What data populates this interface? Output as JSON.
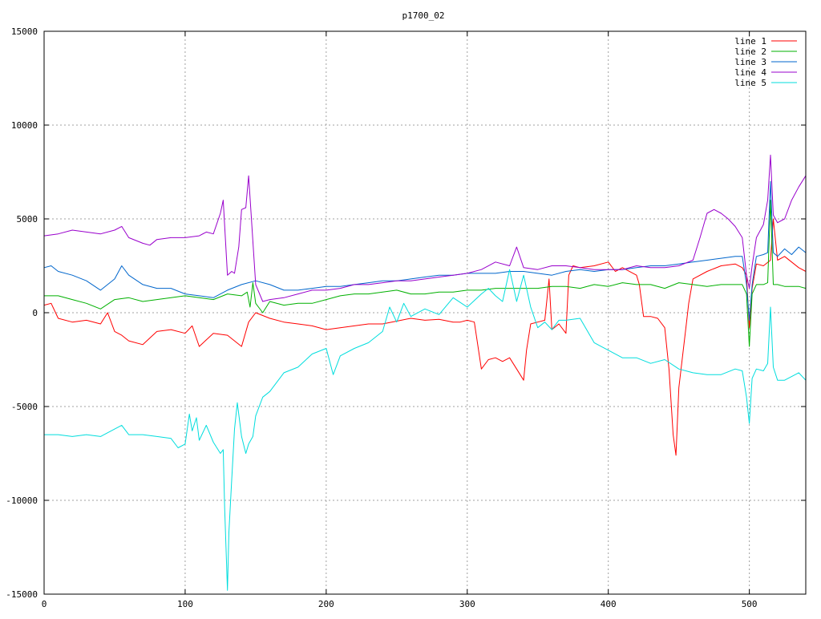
{
  "chart_data": {
    "type": "line",
    "title": "p1700_02",
    "xlabel": "",
    "ylabel": "",
    "xlim": [
      0,
      540
    ],
    "ylim": [
      -15000,
      15000
    ],
    "x_ticks": [
      0,
      100,
      200,
      300,
      400,
      500
    ],
    "y_ticks": [
      -15000,
      -10000,
      -5000,
      0,
      5000,
      10000,
      15000
    ],
    "grid": true,
    "legend_position": "top-right",
    "series": [
      {
        "name": "line 1",
        "color": "#ff0000",
        "x": [
          0,
          5,
          10,
          20,
          30,
          40,
          45,
          50,
          55,
          60,
          70,
          80,
          90,
          100,
          105,
          110,
          120,
          130,
          135,
          140,
          145,
          150,
          160,
          170,
          180,
          190,
          200,
          210,
          220,
          230,
          240,
          250,
          260,
          270,
          280,
          290,
          295,
          300,
          305,
          310,
          315,
          320,
          325,
          330,
          335,
          340,
          342,
          345,
          350,
          355,
          358,
          360,
          365,
          370,
          372,
          375,
          380,
          390,
          400,
          405,
          410,
          420,
          422,
          425,
          430,
          435,
          440,
          443,
          446,
          448,
          450,
          455,
          457,
          460,
          470,
          480,
          490,
          495,
          498,
          500,
          502,
          505,
          510,
          515,
          517,
          520,
          525,
          530,
          535,
          540
        ],
        "y": [
          400,
          500,
          -300,
          -500,
          -400,
          -600,
          0,
          -1000,
          -1200,
          -1500,
          -1700,
          -1000,
          -900,
          -1100,
          -700,
          -1800,
          -1100,
          -1200,
          -1500,
          -1800,
          -500,
          0,
          -300,
          -500,
          -600,
          -700,
          -900,
          -800,
          -700,
          -600,
          -600,
          -450,
          -300,
          -400,
          -350,
          -500,
          -500,
          -400,
          -500,
          -3000,
          -2500,
          -2400,
          -2600,
          -2400,
          -3000,
          -3600,
          -2000,
          -600,
          -500,
          -400,
          1800,
          -900,
          -600,
          -1100,
          2000,
          2500,
          2400,
          2500,
          2700,
          2200,
          2400,
          2000,
          1500,
          -200,
          -200,
          -300,
          -800,
          -3000,
          -6500,
          -7600,
          -4000,
          -800,
          500,
          1800,
          2200,
          2500,
          2600,
          2400,
          2000,
          -800,
          1300,
          2600,
          2500,
          2800,
          5000,
          2800,
          3000,
          2700,
          2400,
          2200
        ]
      },
      {
        "name": "line 2",
        "color": "#00b000",
        "x": [
          0,
          10,
          20,
          30,
          40,
          50,
          60,
          70,
          80,
          90,
          100,
          110,
          120,
          130,
          140,
          144,
          146,
          148,
          150,
          155,
          160,
          170,
          180,
          190,
          200,
          210,
          220,
          230,
          240,
          250,
          260,
          270,
          280,
          290,
          300,
          310,
          320,
          330,
          340,
          350,
          360,
          370,
          380,
          390,
          400,
          410,
          420,
          430,
          440,
          450,
          460,
          470,
          480,
          490,
          495,
          498,
          500,
          502,
          505,
          510,
          513,
          515,
          517,
          520,
          525,
          530,
          535,
          540
        ],
        "y": [
          900,
          900,
          700,
          500,
          200,
          700,
          800,
          600,
          700,
          800,
          900,
          800,
          700,
          1000,
          900,
          1100,
          300,
          1600,
          500,
          0,
          600,
          400,
          500,
          500,
          700,
          900,
          1000,
          1000,
          1100,
          1200,
          1000,
          1000,
          1100,
          1100,
          1200,
          1200,
          1300,
          1300,
          1300,
          1300,
          1400,
          1400,
          1300,
          1500,
          1400,
          1600,
          1500,
          1500,
          1300,
          1600,
          1500,
          1400,
          1500,
          1500,
          1500,
          1000,
          -1800,
          1000,
          1500,
          1500,
          1600,
          6000,
          1500,
          1500,
          1400,
          1400,
          1400,
          1300
        ]
      },
      {
        "name": "line 3",
        "color": "#0066cc",
        "x": [
          0,
          5,
          10,
          20,
          30,
          40,
          50,
          55,
          60,
          70,
          80,
          90,
          100,
          110,
          120,
          130,
          140,
          150,
          160,
          170,
          180,
          190,
          200,
          210,
          220,
          230,
          240,
          250,
          260,
          270,
          280,
          290,
          300,
          310,
          320,
          330,
          340,
          350,
          360,
          370,
          380,
          390,
          400,
          410,
          420,
          430,
          440,
          450,
          460,
          470,
          480,
          490,
          495,
          498,
          500,
          502,
          505,
          510,
          513,
          515,
          517,
          520,
          525,
          530,
          535,
          540
        ],
        "y": [
          2400,
          2500,
          2200,
          2000,
          1700,
          1200,
          1800,
          2500,
          2000,
          1500,
          1300,
          1300,
          1000,
          900,
          800,
          1200,
          1500,
          1700,
          1500,
          1200,
          1200,
          1300,
          1400,
          1400,
          1500,
          1600,
          1700,
          1700,
          1800,
          1900,
          2000,
          2000,
          2100,
          2100,
          2100,
          2200,
          2200,
          2100,
          2000,
          2200,
          2300,
          2200,
          2300,
          2300,
          2400,
          2500,
          2500,
          2600,
          2700,
          2800,
          2900,
          3000,
          3000,
          1500,
          -400,
          1500,
          3000,
          3100,
          3200,
          7000,
          3200,
          3000,
          3400,
          3100,
          3500,
          3200
        ]
      },
      {
        "name": "line 4",
        "color": "#9900cc",
        "x": [
          0,
          10,
          20,
          30,
          40,
          50,
          55,
          60,
          70,
          75,
          80,
          90,
          100,
          110,
          115,
          120,
          125,
          127,
          130,
          133,
          135,
          138,
          140,
          143,
          145,
          147,
          150,
          155,
          160,
          170,
          180,
          190,
          200,
          210,
          220,
          230,
          240,
          250,
          260,
          270,
          280,
          290,
          300,
          310,
          320,
          330,
          335,
          340,
          350,
          360,
          370,
          380,
          390,
          400,
          410,
          420,
          430,
          440,
          450,
          460,
          465,
          470,
          475,
          480,
          485,
          490,
          495,
          498,
          500,
          502,
          505,
          510,
          513,
          515,
          517,
          520,
          525,
          530,
          535,
          540
        ],
        "y": [
          4100,
          4200,
          4400,
          4300,
          4200,
          4400,
          4600,
          4000,
          3700,
          3600,
          3900,
          4000,
          4000,
          4100,
          4300,
          4200,
          5300,
          6000,
          2000,
          2200,
          2100,
          3500,
          5500,
          5600,
          7300,
          5000,
          1500,
          600,
          700,
          800,
          1000,
          1200,
          1200,
          1300,
          1500,
          1500,
          1600,
          1700,
          1700,
          1800,
          1900,
          2000,
          2100,
          2300,
          2700,
          2500,
          3500,
          2400,
          2300,
          2500,
          2500,
          2400,
          2300,
          2300,
          2300,
          2500,
          2400,
          2400,
          2500,
          2800,
          4000,
          5300,
          5500,
          5300,
          5000,
          4600,
          4000,
          2000,
          1300,
          2500,
          4000,
          4700,
          6000,
          8400,
          5200,
          4800,
          5000,
          6000,
          6700,
          7300
        ]
      },
      {
        "name": "line 5",
        "color": "#00dddd",
        "x": [
          0,
          10,
          20,
          30,
          40,
          50,
          55,
          60,
          70,
          80,
          90,
          95,
          100,
          103,
          105,
          108,
          110,
          115,
          120,
          125,
          127,
          128,
          130,
          131,
          133,
          135,
          137,
          140,
          143,
          145,
          148,
          150,
          155,
          160,
          170,
          180,
          190,
          200,
          205,
          210,
          220,
          230,
          240,
          245,
          250,
          255,
          260,
          270,
          280,
          290,
          300,
          310,
          315,
          320,
          325,
          330,
          335,
          340,
          345,
          350,
          355,
          360,
          365,
          370,
          380,
          390,
          400,
          410,
          420,
          430,
          440,
          450,
          460,
          470,
          480,
          490,
          495,
          498,
          500,
          502,
          505,
          510,
          513,
          515,
          517,
          520,
          525,
          530,
          535,
          540
        ],
        "y": [
          -6500,
          -6500,
          -6600,
          -6500,
          -6600,
          -6200,
          -6000,
          -6500,
          -6500,
          -6600,
          -6700,
          -7200,
          -7000,
          -5400,
          -6300,
          -5600,
          -6800,
          -6000,
          -6900,
          -7500,
          -7300,
          -10400,
          -14800,
          -11700,
          -8900,
          -6200,
          -4800,
          -6600,
          -7500,
          -7000,
          -6600,
          -5500,
          -4500,
          -4200,
          -3200,
          -2900,
          -2200,
          -1900,
          -3300,
          -2300,
          -1900,
          -1600,
          -1000,
          300,
          -500,
          500,
          -200,
          200,
          -100,
          800,
          300,
          1000,
          1300,
          900,
          600,
          2300,
          600,
          2000,
          300,
          -800,
          -500,
          -900,
          -400,
          -400,
          -300,
          -1600,
          -2000,
          -2400,
          -2400,
          -2700,
          -2500,
          -3000,
          -3200,
          -3300,
          -3300,
          -3000,
          -3100,
          -4500,
          -5900,
          -3500,
          -3000,
          -3100,
          -2700,
          300,
          -2900,
          -3600,
          -3600,
          -3400,
          -3200,
          -3600
        ]
      }
    ]
  }
}
